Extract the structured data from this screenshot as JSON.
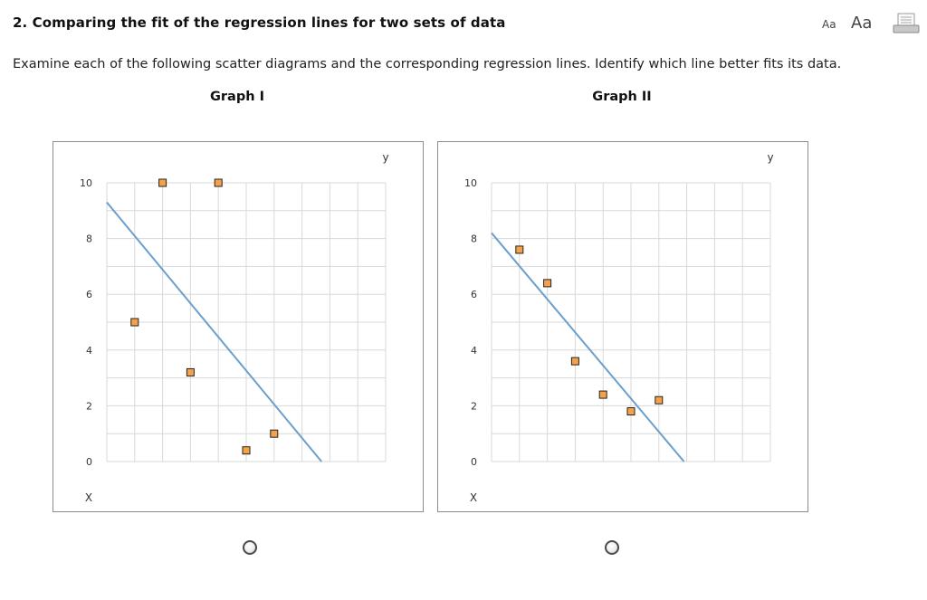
{
  "question": {
    "title": "2. Comparing the fit of the regression lines for two sets of data",
    "instruction": "Examine each of the following scatter diagrams and the corresponding regression lines. Identify which line better fits its data."
  },
  "toolbar": {
    "text_small": "Aa",
    "text_large": "Aa",
    "print_icon": "print-icon"
  },
  "graphs": [
    {
      "label": "Graph I"
    },
    {
      "label": "Graph II"
    }
  ],
  "chart_data": [
    {
      "type": "scatter",
      "title": "Graph I",
      "xlabel": "X",
      "ylabel": "y",
      "xlim": [
        0,
        10
      ],
      "ylim": [
        0,
        10
      ],
      "yticks": [
        0,
        2,
        4,
        6,
        8,
        10
      ],
      "grid": true,
      "marker_color": "#f5a14a",
      "line_color": "#6b9fcc",
      "points": [
        {
          "x": 1,
          "y": 5
        },
        {
          "x": 2,
          "y": 10
        },
        {
          "x": 3,
          "y": 3.2
        },
        {
          "x": 4,
          "y": 10
        },
        {
          "x": 5,
          "y": 0.4
        },
        {
          "x": 6,
          "y": 1
        }
      ],
      "regression_line": [
        {
          "x": 0,
          "y": 9.3
        },
        {
          "x": 7.7,
          "y": 0
        }
      ]
    },
    {
      "type": "scatter",
      "title": "Graph II",
      "xlabel": "X",
      "ylabel": "y",
      "xlim": [
        0,
        10
      ],
      "ylim": [
        0,
        10
      ],
      "yticks": [
        0,
        2,
        4,
        6,
        8,
        10
      ],
      "grid": true,
      "marker_color": "#f5a14a",
      "line_color": "#6b9fcc",
      "points": [
        {
          "x": 1,
          "y": 7.6
        },
        {
          "x": 2,
          "y": 6.4
        },
        {
          "x": 3,
          "y": 3.6
        },
        {
          "x": 4,
          "y": 2.4
        },
        {
          "x": 5,
          "y": 1.8
        },
        {
          "x": 6,
          "y": 2.2
        }
      ],
      "regression_line": [
        {
          "x": 0,
          "y": 8.2
        },
        {
          "x": 6.9,
          "y": 0
        }
      ]
    }
  ]
}
